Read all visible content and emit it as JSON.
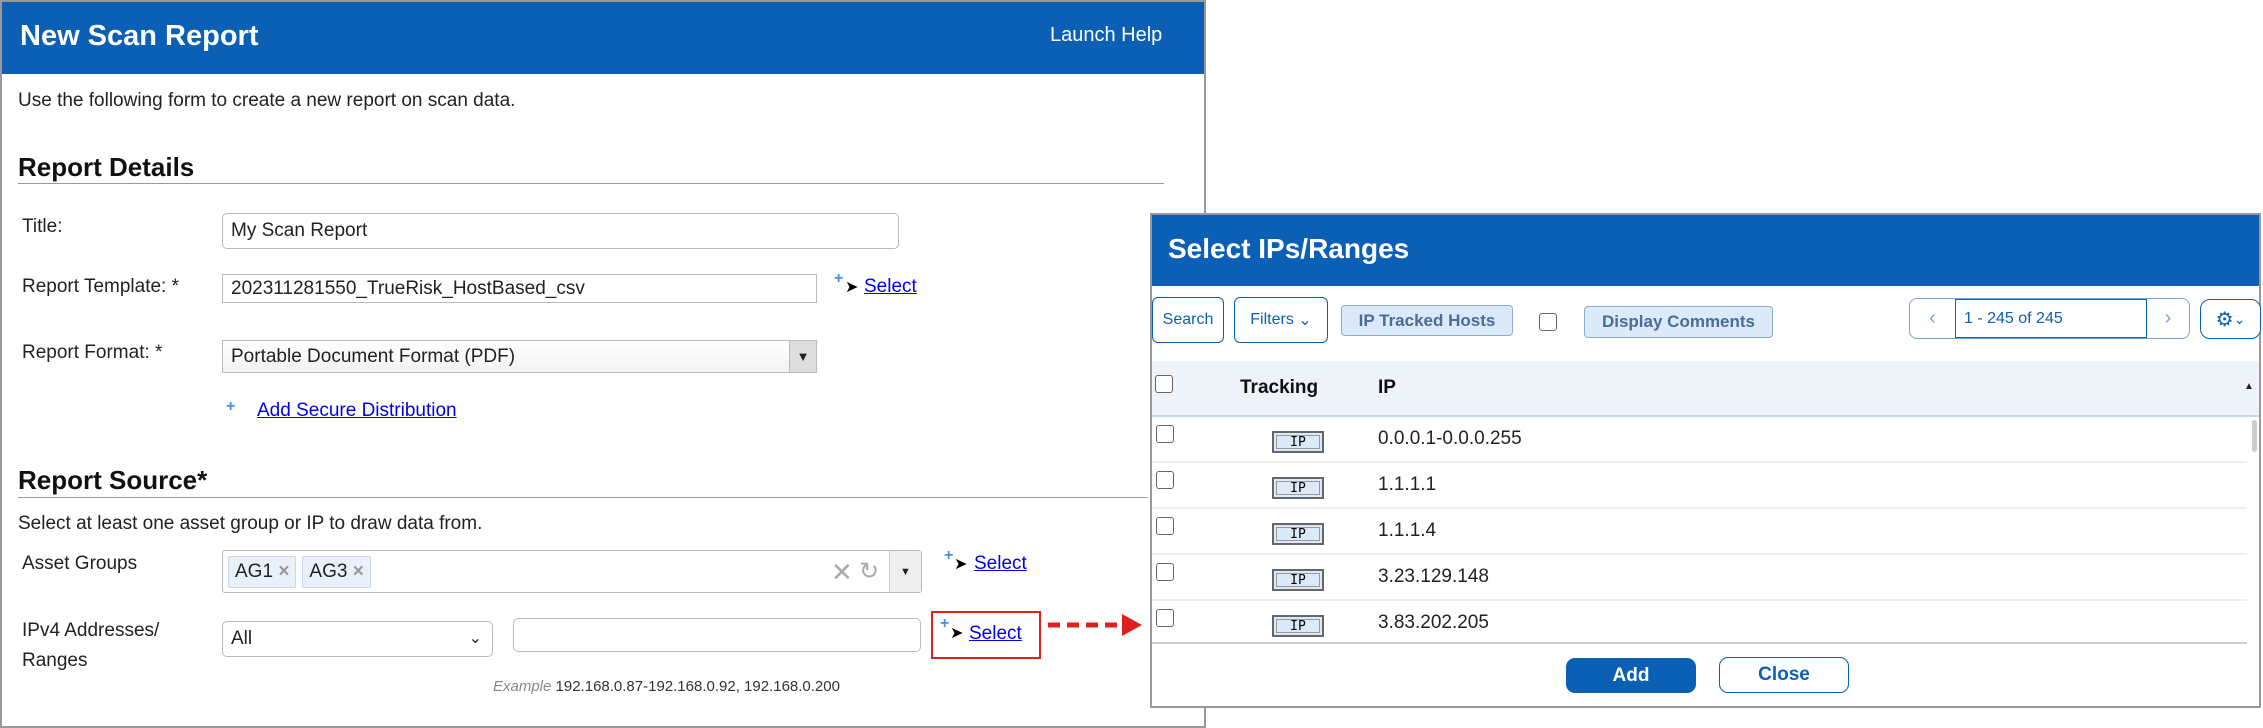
{
  "main": {
    "title": "New Scan Report",
    "help": "Launch Help",
    "intro": "Use the following form to create a new report on scan data.",
    "details": {
      "heading": "Report Details",
      "title_label": "Title:",
      "title_value": "My Scan Report",
      "template_label": "Report Template: *",
      "template_value": "202311281550_TrueRisk_HostBased_csv",
      "select": "Select",
      "format_label": "Report Format: *",
      "format_value": "Portable Document Format (PDF)",
      "add_distribution": "Add Secure Distribution"
    },
    "source": {
      "heading": "Report Source*",
      "help": "Select at least one asset group or IP to draw data from.",
      "asset_label": "Asset Groups",
      "asset_chips": [
        "AG1",
        "AG3"
      ],
      "select": "Select",
      "ipv4_label_1": "IPv4 Addresses/",
      "ipv4_label_2": "Ranges",
      "ipv4_mode": "All",
      "ipv4_value": "",
      "example_label": "Example",
      "example_value": "192.168.0.87-192.168.0.92, 192.168.0.200"
    }
  },
  "dialog": {
    "title": "Select IPs/Ranges",
    "search": "Search",
    "filters": "Filters",
    "tag_tracked": "IP Tracked Hosts",
    "tag_comments": "Display Comments",
    "pagination": "1 - 245 of 245",
    "columns": {
      "tracking": "Tracking",
      "ip": "IP"
    },
    "rows": [
      {
        "tracking": "IP",
        "ip": "0.0.0.1-0.0.0.255"
      },
      {
        "tracking": "IP",
        "ip": "1.1.1.1"
      },
      {
        "tracking": "IP",
        "ip": "1.1.1.4"
      },
      {
        "tracking": "IP",
        "ip": "3.23.129.148"
      },
      {
        "tracking": "IP",
        "ip": "3.83.202.205"
      }
    ],
    "add": "Add",
    "close": "Close"
  },
  "colors": {
    "brand": "#0b5fb4",
    "highlight": "#e0201c"
  }
}
